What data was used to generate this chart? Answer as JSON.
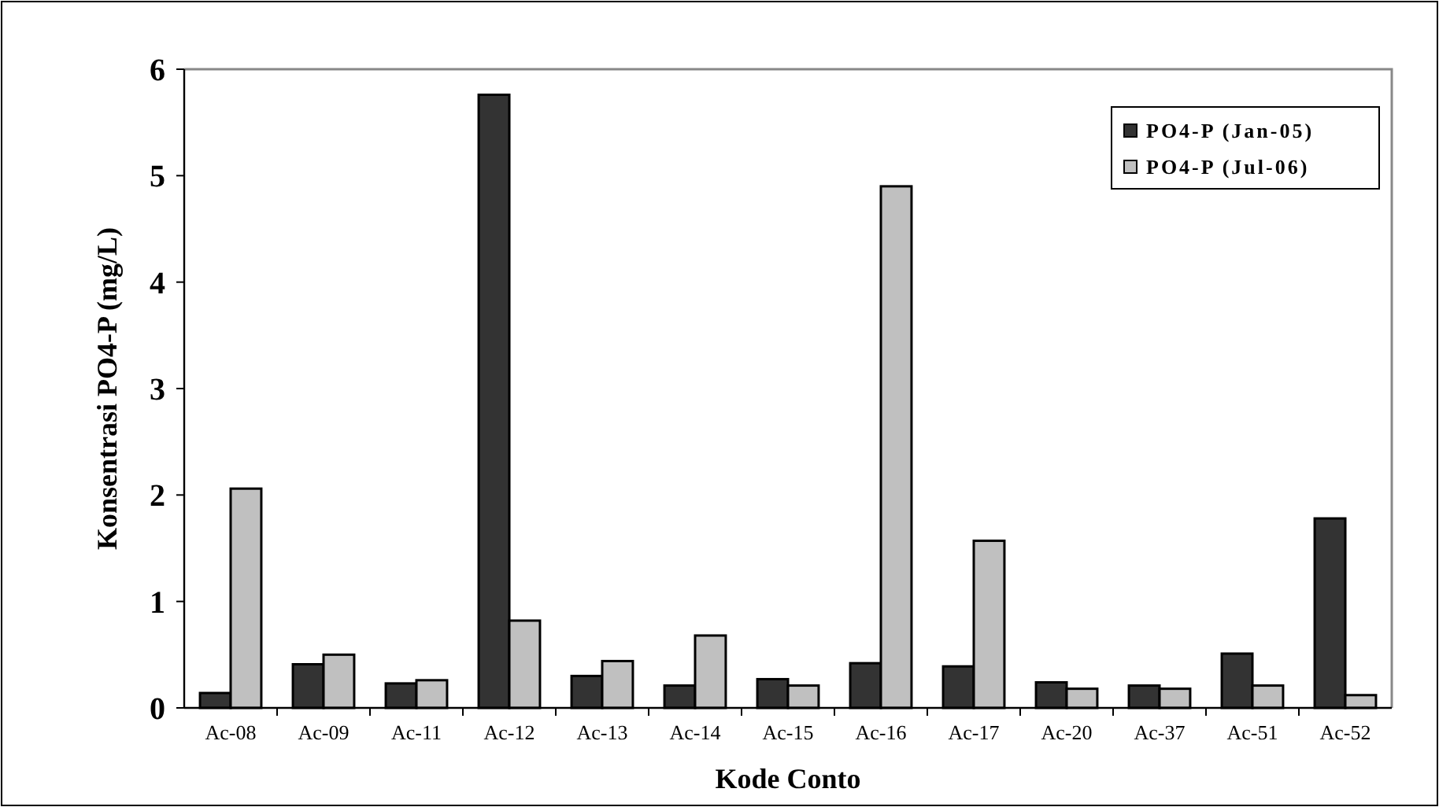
{
  "chart_data": {
    "type": "bar",
    "xlabel": "Kode Conto",
    "ylabel": "Konsentrasi PO4-P (mg/L)",
    "categories": [
      "Ac-08",
      "Ac-09",
      "Ac-11",
      "Ac-12",
      "Ac-13",
      "Ac-14",
      "Ac-15",
      "Ac-16",
      "Ac-17",
      "Ac-20",
      "Ac-37",
      "Ac-51",
      "Ac-52"
    ],
    "series": [
      {
        "name": "PO4-P (Jan-05)",
        "color": "#333333",
        "values": [
          0.14,
          0.41,
          0.23,
          5.76,
          0.3,
          0.21,
          0.27,
          0.42,
          0.39,
          0.24,
          0.21,
          0.51,
          1.78
        ]
      },
      {
        "name": "PO4-P (Jul-06)",
        "color": "#c0c0c0",
        "values": [
          2.06,
          0.5,
          0.26,
          0.82,
          0.44,
          0.68,
          0.21,
          4.9,
          1.57,
          0.18,
          0.18,
          0.21,
          0.12
        ]
      }
    ],
    "ylim": [
      0,
      6
    ],
    "yticks": [
      0,
      1,
      2,
      3,
      4,
      5,
      6
    ],
    "grid": false,
    "legend": "top right"
  }
}
